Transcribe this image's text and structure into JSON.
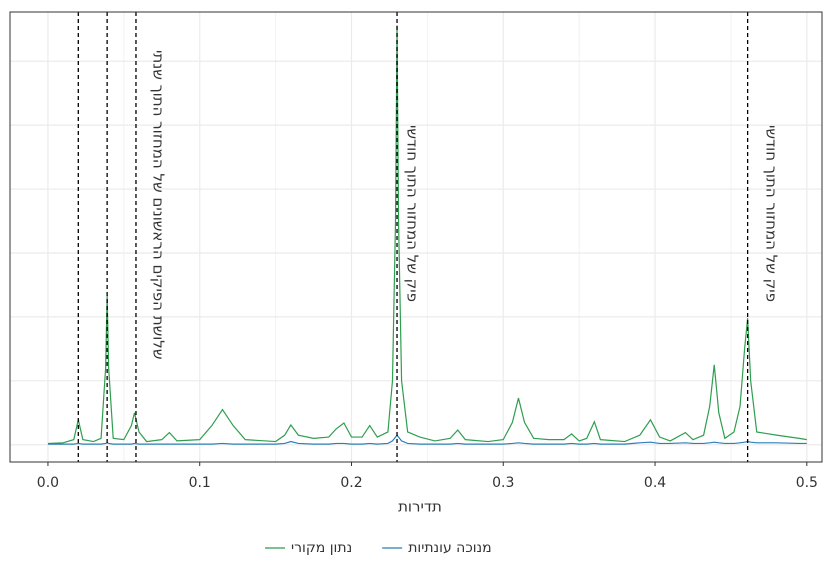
{
  "chart_data": {
    "type": "line",
    "x_label": "תדירות",
    "x": [
      0.0,
      0.01,
      0.017,
      0.02,
      0.023,
      0.03,
      0.035,
      0.038,
      0.039,
      0.04,
      0.043,
      0.05,
      0.055,
      0.057,
      0.06,
      0.065,
      0.075,
      0.08,
      0.085,
      0.1,
      0.108,
      0.115,
      0.122,
      0.13,
      0.15,
      0.156,
      0.16,
      0.165,
      0.175,
      0.185,
      0.19,
      0.195,
      0.2,
      0.207,
      0.212,
      0.217,
      0.224,
      0.227,
      0.229,
      0.23,
      0.231,
      0.233,
      0.237,
      0.245,
      0.255,
      0.265,
      0.27,
      0.275,
      0.29,
      0.3,
      0.306,
      0.31,
      0.314,
      0.32,
      0.33,
      0.34,
      0.345,
      0.35,
      0.355,
      0.36,
      0.364,
      0.38,
      0.39,
      0.397,
      0.403,
      0.41,
      0.42,
      0.425,
      0.432,
      0.436,
      0.439,
      0.442,
      0.446,
      0.452,
      0.456,
      0.459,
      0.461,
      0.463,
      0.467,
      0.48,
      0.495,
      0.5
    ],
    "series": [
      {
        "name": "נתון מקורי",
        "color": "#2e9e4f",
        "values": [
          0.02,
          0.03,
          0.08,
          0.39,
          0.08,
          0.05,
          0.1,
          1.2,
          2.34,
          1.2,
          0.1,
          0.08,
          0.3,
          0.5,
          0.2,
          0.05,
          0.08,
          0.19,
          0.06,
          0.08,
          0.3,
          0.55,
          0.3,
          0.08,
          0.05,
          0.15,
          0.31,
          0.15,
          0.1,
          0.12,
          0.25,
          0.34,
          0.12,
          0.12,
          0.3,
          0.12,
          0.2,
          1.0,
          3.5,
          6.56,
          3.5,
          1.0,
          0.2,
          0.12,
          0.06,
          0.1,
          0.23,
          0.08,
          0.05,
          0.08,
          0.35,
          0.73,
          0.35,
          0.1,
          0.08,
          0.08,
          0.17,
          0.06,
          0.1,
          0.36,
          0.08,
          0.05,
          0.15,
          0.39,
          0.12,
          0.06,
          0.19,
          0.08,
          0.15,
          0.6,
          1.25,
          0.5,
          0.1,
          0.2,
          0.6,
          1.5,
          1.98,
          1.0,
          0.2,
          0.15,
          0.1,
          0.08
        ]
      },
      {
        "name": "מנוכה עונתיות",
        "color": "#2c7fb8",
        "values": [
          0.01,
          0.01,
          0.01,
          0.02,
          0.01,
          0.01,
          0.01,
          0.02,
          0.03,
          0.02,
          0.01,
          0.01,
          0.01,
          0.02,
          0.01,
          0.01,
          0.01,
          0.01,
          0.01,
          0.01,
          0.01,
          0.02,
          0.01,
          0.01,
          0.01,
          0.02,
          0.05,
          0.02,
          0.01,
          0.01,
          0.02,
          0.02,
          0.01,
          0.01,
          0.02,
          0.01,
          0.02,
          0.06,
          0.12,
          0.15,
          0.12,
          0.06,
          0.02,
          0.01,
          0.01,
          0.01,
          0.02,
          0.01,
          0.01,
          0.01,
          0.02,
          0.03,
          0.02,
          0.01,
          0.01,
          0.01,
          0.02,
          0.01,
          0.01,
          0.02,
          0.01,
          0.01,
          0.03,
          0.04,
          0.02,
          0.02,
          0.03,
          0.02,
          0.02,
          0.03,
          0.04,
          0.03,
          0.02,
          0.02,
          0.03,
          0.04,
          0.05,
          0.04,
          0.03,
          0.03,
          0.02,
          0.02
        ]
      }
    ],
    "xlim": [
      -0.025,
      0.51
    ],
    "ylim": [
      -0.27,
      6.77
    ],
    "xticks": [
      {
        "value": 0,
        "label": "0.0"
      },
      0.1,
      0.2,
      0.3,
      0.4,
      0.5
    ],
    "x_minor_grid": [
      0.05,
      0.15,
      0.25,
      0.35,
      0.45
    ],
    "y_grid": [
      0,
      1,
      2,
      3,
      4,
      5,
      6
    ],
    "vlines": [
      0.02,
      0.039,
      0.058,
      0.23,
      0.461
    ],
    "annotations": [
      "שלושת הפיקים הראשונים של המחזור התוך שנתי",
      "פיק של המחזור התוך חודשי",
      "פיק של המחזור התוך חודשי"
    ],
    "grid": true
  }
}
